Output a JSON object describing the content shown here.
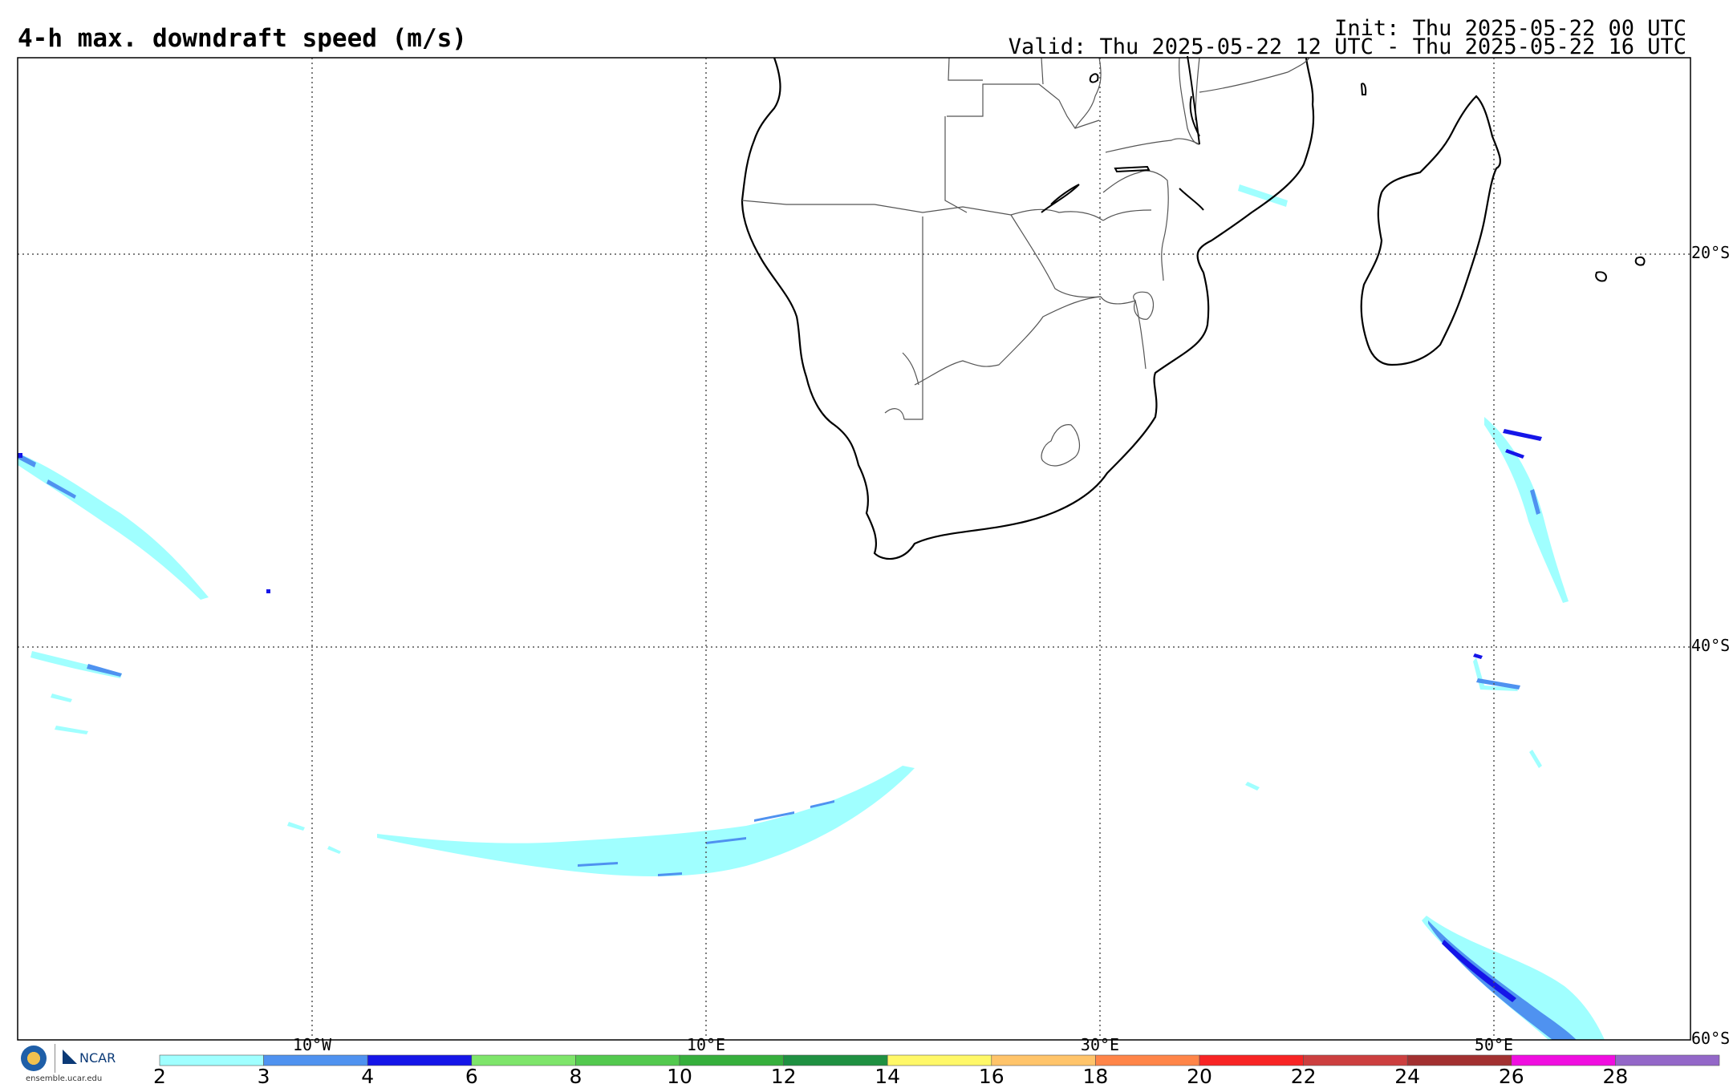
{
  "header": {
    "title": "4-h max. downdraft speed (m/s)",
    "init": "Init: Thu 2025-05-22 00 UTC",
    "valid": "Valid: Thu 2025-05-22 12 UTC - Thu 2025-05-22 16 UTC"
  },
  "map": {
    "projection": "cylindrical",
    "lon_range": [
      -25,
      60
    ],
    "lat_range": [
      -60,
      -10
    ],
    "gridlines": "dotted",
    "lon_labels": [
      "10°W",
      "10°E",
      "30°E",
      "50°E"
    ],
    "lat_labels": [
      "20°S",
      "40°S",
      "60°S"
    ],
    "regions": [
      "southern-africa",
      "madagascar",
      "mascarene-islands"
    ]
  },
  "colorbar": {
    "levels": [
      "2",
      "3",
      "4",
      "6",
      "8",
      "10",
      "12",
      "14",
      "16",
      "18",
      "20",
      "22",
      "24",
      "26",
      "28"
    ],
    "colors": [
      "#a0ffff",
      "#4f92f0",
      "#1515e8",
      "#7ee56a",
      "#53c94e",
      "#36af3c",
      "#1f9041",
      "#fff868",
      "#ffc46a",
      "#ff8548",
      "#f82424",
      "#cc3f3f",
      "#a23030",
      "#f00ee0",
      "#9367c8"
    ]
  },
  "logo": {
    "org": "NCAR",
    "url": "ensemble.ucar.edu"
  }
}
